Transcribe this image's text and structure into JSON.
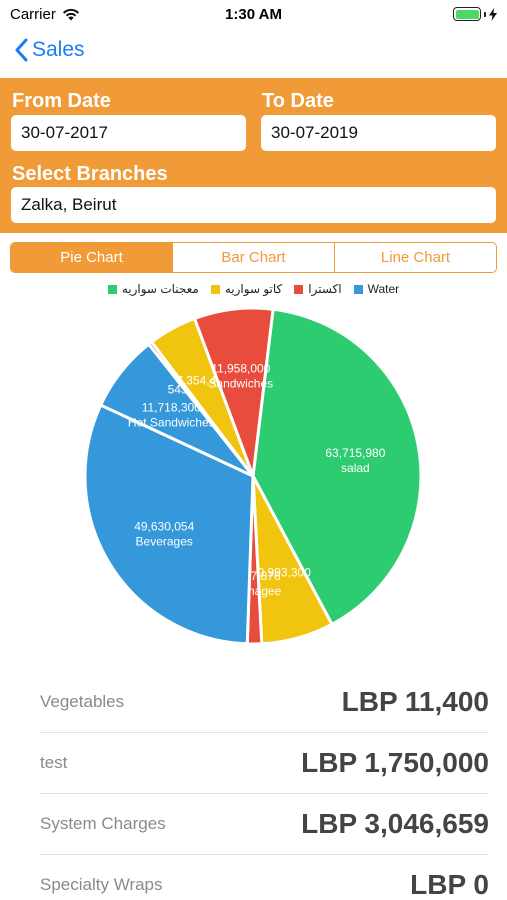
{
  "status_bar": {
    "carrier": "Carrier",
    "time": "1:30 AM"
  },
  "nav": {
    "back_label": "Sales"
  },
  "filters": {
    "from_label": "From Date",
    "from_value": "30-07-2017",
    "to_label": "To Date",
    "to_value": "30-07-2019",
    "branches_label": "Select Branches",
    "branches_value": "Zalka, Beirut"
  },
  "tabs": [
    {
      "label": "Pie Chart",
      "active": true
    },
    {
      "label": "Bar Chart",
      "active": false
    },
    {
      "label": "Line Chart",
      "active": false
    }
  ],
  "colors": {
    "accent": "#f19a38",
    "link": "#1b7cf6",
    "battery": "#4cd964"
  },
  "chart_data": {
    "type": "pie",
    "legend": [
      {
        "name": "معجنات سواريه",
        "color": "#2ecc71"
      },
      {
        "name": "كاتو سواريه",
        "color": "#f1c40f"
      },
      {
        "name": "اكسترا",
        "color": "#e74c3c"
      },
      {
        "name": "Water",
        "color": "#3498db"
      }
    ],
    "legend_position": "top",
    "labeled_slices": [
      {
        "name": "salad",
        "value": 63715980,
        "value_label": "63,715,980",
        "color": "#2ecc71"
      },
      {
        "name": "Beverages",
        "value": 49630054,
        "value_label": "49,630,054",
        "color": "#3498db"
      },
      {
        "name": "Sandwiches",
        "value": 11958000,
        "value_label": "11,958,000",
        "color": "#e74c3c"
      },
      {
        "name": "Hot Sandwiches",
        "value": 11718300,
        "value_label": "11,718,300",
        "color": "#3498db"
      },
      {
        "name": "",
        "value": 10993300,
        "value_label": "10,993,300",
        "color": "#f1c40f"
      },
      {
        "name": "",
        "value": 7354437,
        "value_label": "7,354,437",
        "color": "#f1c40f"
      },
      {
        "name": "Fromagee",
        "value": 2177876,
        "value_label": "2,177,876",
        "color": "#e74c3c"
      },
      {
        "name": "",
        "value": 543000,
        "value_label": "543,000",
        "color": "#e74c3c"
      }
    ]
  },
  "summary": [
    {
      "name": "Vegetables",
      "value": "LBP 11,400"
    },
    {
      "name": "test",
      "value": "LBP 1,750,000"
    },
    {
      "name": "System Charges",
      "value": "LBP 3,046,659"
    },
    {
      "name": "Specialty Wraps",
      "value": "LBP 0"
    }
  ]
}
